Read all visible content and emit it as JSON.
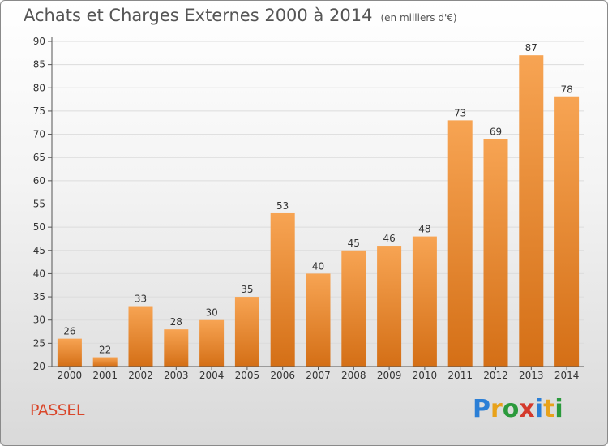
{
  "header": {
    "title": "Achats et Charges Externes 2000 à 2014",
    "subtitle": "(en milliers d'€)"
  },
  "commune": "PASSEL",
  "logo": {
    "letters": [
      "P",
      "r",
      "o",
      "x",
      "i",
      "t",
      "i"
    ],
    "colors": [
      "#2b7fd6",
      "#e8a21a",
      "#2b9a3c",
      "#d43a2c",
      "#2b7fd6",
      "#e8a21a",
      "#2b9a3c"
    ]
  },
  "colors": {
    "bar_top": "#f7a453",
    "bar_bottom": "#d46f16"
  },
  "chart_data": {
    "type": "bar",
    "title": "Achats et Charges Externes 2000 à 2014",
    "subtitle": "(en milliers d'€)",
    "categories": [
      "2000",
      "2001",
      "2002",
      "2003",
      "2004",
      "2005",
      "2006",
      "2007",
      "2008",
      "2009",
      "2010",
      "2011",
      "2012",
      "2013",
      "2014"
    ],
    "values": [
      26,
      22,
      33,
      28,
      30,
      35,
      53,
      40,
      45,
      46,
      48,
      73,
      69,
      87,
      78
    ],
    "ylim": [
      20,
      90
    ],
    "yticks": [
      20,
      25,
      30,
      35,
      40,
      45,
      50,
      55,
      60,
      65,
      70,
      75,
      80,
      85,
      90
    ],
    "grid": true,
    "xlabel": "",
    "ylabel": ""
  }
}
